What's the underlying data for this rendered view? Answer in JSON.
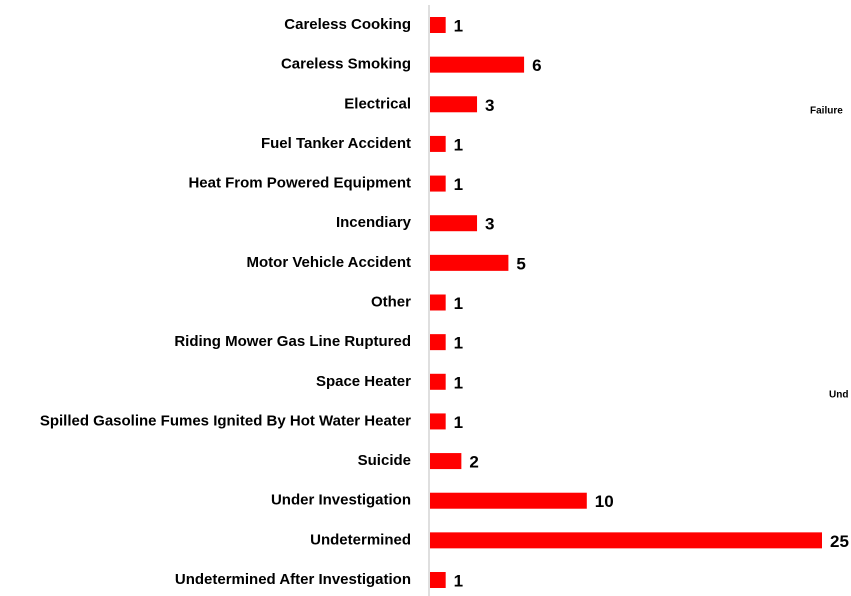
{
  "chart_data": {
    "type": "barh",
    "categories": [
      "Careless Cooking",
      "Careless Smoking",
      "Electrical",
      "Fuel Tanker Accident",
      "Heat From Powered Equipment",
      "Incendiary",
      "Motor Vehicle Accident",
      "Other",
      "Riding Mower Gas Line Ruptured",
      "Space Heater",
      "Spilled Gasoline Fumes Ignited By Hot Water Heater",
      "Suicide",
      "Under Investigation",
      "Undetermined",
      "Undetermined After Investigation"
    ],
    "values": [
      1,
      6,
      3,
      1,
      1,
      3,
      5,
      1,
      1,
      1,
      1,
      2,
      10,
      25,
      1
    ],
    "color": "#ff0000",
    "xlim": [
      0,
      25
    ],
    "annotations": [
      "Failure",
      "Und"
    ]
  }
}
